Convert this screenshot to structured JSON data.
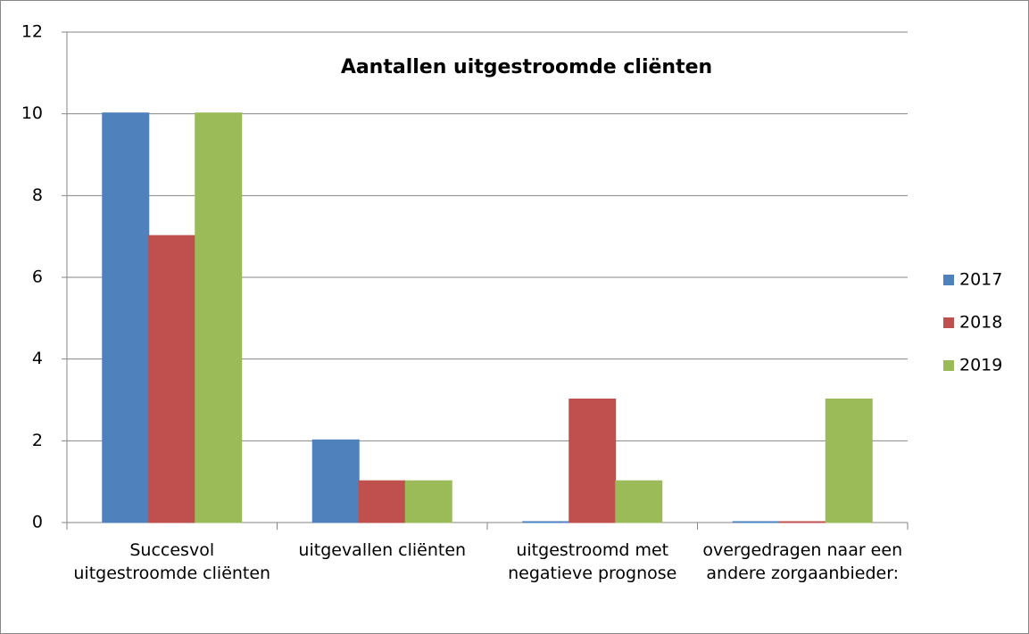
{
  "chart_data": {
    "type": "bar",
    "title": "Aantallen uitgestroomde cliënten",
    "categories": [
      "Succesvol uitgestroomde cliënten",
      "uitgevallen cliënten",
      "uitgestroomd met negatieve prognose",
      "overgedragen naar een andere zorgaanbieder:"
    ],
    "series": [
      {
        "name": "2017",
        "color": "#4f81bd",
        "values": [
          10,
          2,
          0,
          0
        ]
      },
      {
        "name": "2018",
        "color": "#c0504d",
        "values": [
          7,
          1,
          3,
          0
        ]
      },
      {
        "name": "2019",
        "color": "#9bbb59",
        "values": [
          10,
          1,
          1,
          3
        ]
      }
    ],
    "ylim": [
      0,
      12
    ],
    "yticks": [
      0,
      2,
      4,
      6,
      8,
      10,
      12
    ],
    "grid": true,
    "legend": "right"
  }
}
